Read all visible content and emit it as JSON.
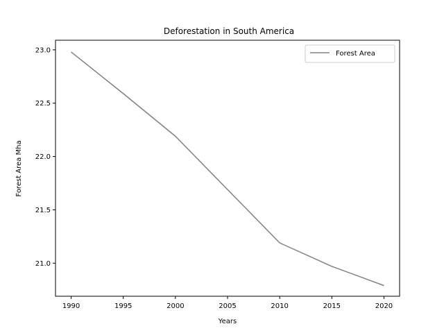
{
  "chart_data": {
    "type": "line",
    "title": "Deforestation in South America",
    "xlabel": "Years",
    "ylabel": "Forest Area Mha",
    "x": [
      1990,
      1995,
      2000,
      2005,
      2010,
      2015,
      2020
    ],
    "series": [
      {
        "name": "Forest Area",
        "color": "#808080",
        "values": [
          22.98,
          22.59,
          22.19,
          21.69,
          21.19,
          20.97,
          20.79
        ]
      }
    ],
    "xticks": [
      "1990",
      "1995",
      "2000",
      "2005",
      "2010",
      "2015",
      "2020"
    ],
    "yticks": [
      "21.0",
      "21.5",
      "22.0",
      "22.5",
      "23.0"
    ],
    "xlim": [
      1988.5,
      2021.5
    ],
    "ylim": [
      20.69,
      23.09
    ],
    "grid": false,
    "legend_position": "top-right"
  }
}
